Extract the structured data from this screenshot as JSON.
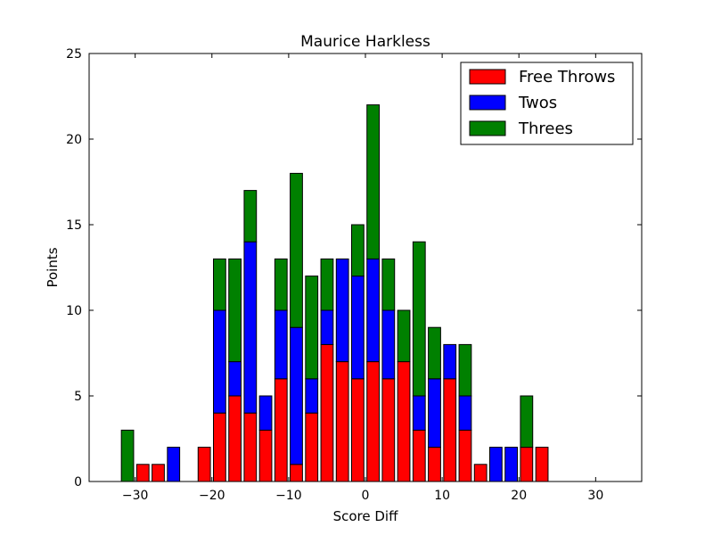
{
  "chart_data": {
    "type": "bar",
    "stacked": true,
    "title": "Maurice Harkless",
    "xlabel": "Score Diff",
    "ylabel": "Points",
    "xlim": [
      -36,
      36
    ],
    "ylim": [
      0,
      25
    ],
    "x_ticks": [
      -30,
      -20,
      -10,
      0,
      10,
      20,
      30
    ],
    "x_tick_labels": [
      "−30",
      "−20",
      "−10",
      "0",
      "10",
      "20",
      "30"
    ],
    "y_ticks": [
      0,
      5,
      10,
      15,
      20,
      25
    ],
    "y_tick_labels": [
      "0",
      "5",
      "10",
      "15",
      "20",
      "25"
    ],
    "bar_width": 1.6,
    "x": [
      -31,
      -29,
      -27,
      -25,
      -21,
      -19,
      -17,
      -15,
      -13,
      -11,
      -9,
      -7,
      -5,
      -3,
      -1,
      1,
      3,
      5,
      7,
      9,
      11,
      13,
      15,
      17,
      19,
      21,
      23
    ],
    "series": [
      {
        "name": "Free Throws",
        "color": "#ff0000",
        "values": [
          0,
          1,
          1,
          0,
          2,
          4,
          5,
          4,
          3,
          6,
          1,
          4,
          8,
          7,
          6,
          7,
          6,
          7,
          3,
          2,
          6,
          3,
          1,
          0,
          0,
          2,
          2
        ]
      },
      {
        "name": "Twos",
        "color": "#0000ff",
        "values": [
          0,
          0,
          0,
          2,
          0,
          6,
          2,
          10,
          2,
          4,
          8,
          2,
          2,
          6,
          6,
          6,
          4,
          0,
          2,
          4,
          2,
          2,
          0,
          2,
          2,
          0,
          0
        ]
      },
      {
        "name": "Threes",
        "color": "#008000",
        "values": [
          3,
          0,
          0,
          0,
          0,
          3,
          6,
          3,
          0,
          3,
          9,
          6,
          3,
          0,
          3,
          9,
          3,
          3,
          9,
          3,
          0,
          3,
          0,
          0,
          0,
          3,
          0
        ]
      }
    ],
    "legend_position": "top-right",
    "grid": false
  }
}
